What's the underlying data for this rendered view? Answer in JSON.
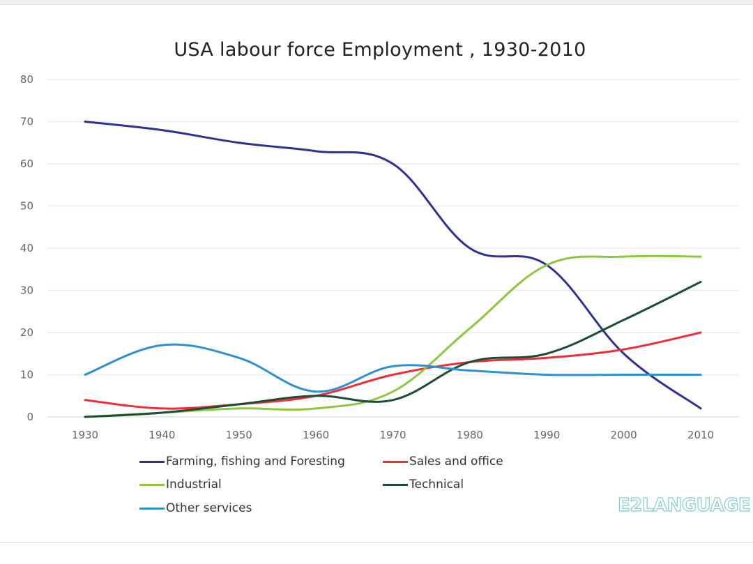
{
  "chart_data": {
    "type": "line",
    "title": "USA labour force Employment , 1930-2010",
    "xlabel": "",
    "ylabel": "",
    "x": [
      1930,
      1940,
      1950,
      1960,
      1970,
      1980,
      1990,
      2000,
      2010
    ],
    "x_tick_labels": [
      "1930",
      "1940",
      "1950",
      "1960",
      "1970",
      "1980",
      "1990",
      "2000",
      "2010"
    ],
    "y_tick_labels": [
      "0",
      "10",
      "20",
      "30",
      "40",
      "50",
      "60",
      "70",
      "80"
    ],
    "ylim": [
      0,
      80
    ],
    "grid": "horizontal",
    "legend_placement": "bottom",
    "series": [
      {
        "name": "Farming, fishing and Foresting",
        "color": "#2e3192",
        "values": [
          70,
          68,
          65,
          63,
          60,
          40,
          36,
          15,
          2
        ]
      },
      {
        "name": "Sales and office",
        "color": "#ee2d3b",
        "values": [
          4,
          2,
          3,
          5,
          10,
          13,
          14,
          16,
          20
        ]
      },
      {
        "name": "Industrial",
        "color": "#8dc63f",
        "values": [
          0,
          1,
          2,
          2,
          6,
          21,
          36,
          38,
          38
        ]
      },
      {
        "name": "Technical",
        "color": "#1e4d35",
        "values": [
          0,
          1,
          3,
          5,
          4,
          13,
          15,
          23,
          32
        ]
      },
      {
        "name": "Other services",
        "color": "#2f8fcf",
        "values": [
          10,
          17,
          14,
          6,
          12,
          11,
          10,
          10,
          10
        ]
      }
    ]
  },
  "logo": {
    "text": "E2LANGUAGE",
    "color": "#7fcfd0"
  }
}
